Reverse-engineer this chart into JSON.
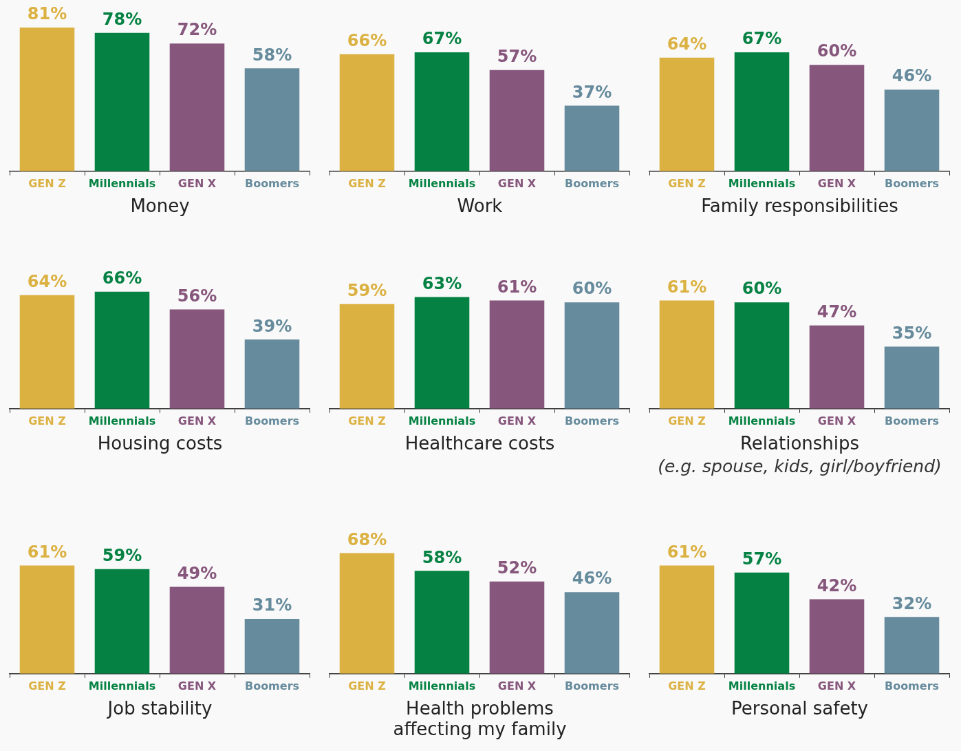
{
  "chart_data": [
    {
      "type": "bar",
      "title": "Money",
      "categories": [
        "GEN Z",
        "Millennials",
        "GEN X",
        "Boomers"
      ],
      "values": [
        81,
        78,
        72,
        58
      ],
      "value_labels": [
        "81%",
        "78%",
        "72%",
        "58%"
      ],
      "colors": [
        "#dbb142",
        "#058243",
        "#86567c",
        "#668b9c"
      ],
      "grid": false,
      "legend": false
    },
    {
      "type": "bar",
      "title": "Work",
      "categories": [
        "GEN Z",
        "Millennials",
        "GEN X",
        "Boomers"
      ],
      "values": [
        66,
        67,
        57,
        37
      ],
      "value_labels": [
        "66%",
        "67%",
        "57%",
        "37%"
      ],
      "colors": [
        "#dbb142",
        "#058243",
        "#86567c",
        "#668b9c"
      ],
      "grid": false,
      "legend": false
    },
    {
      "type": "bar",
      "title": "Family responsibilities",
      "categories": [
        "GEN Z",
        "Millennials",
        "GEN X",
        "Boomers"
      ],
      "values": [
        64,
        67,
        60,
        46
      ],
      "value_labels": [
        "64%",
        "67%",
        "60%",
        "46%"
      ],
      "colors": [
        "#dbb142",
        "#058243",
        "#86567c",
        "#668b9c"
      ],
      "grid": false,
      "legend": false
    },
    {
      "type": "bar",
      "title": "Housing costs",
      "categories": [
        "GEN Z",
        "Millennials",
        "GEN X",
        "Boomers"
      ],
      "values": [
        64,
        66,
        56,
        39
      ],
      "value_labels": [
        "64%",
        "66%",
        "56%",
        "39%"
      ],
      "colors": [
        "#dbb142",
        "#058243",
        "#86567c",
        "#668b9c"
      ],
      "grid": false,
      "legend": false
    },
    {
      "type": "bar",
      "title": "Healthcare costs",
      "categories": [
        "GEN Z",
        "Millennials",
        "GEN X",
        "Boomers"
      ],
      "values": [
        59,
        63,
        61,
        60
      ],
      "value_labels": [
        "59%",
        "63%",
        "61%",
        "60%"
      ],
      "colors": [
        "#dbb142",
        "#058243",
        "#86567c",
        "#668b9c"
      ],
      "grid": false,
      "legend": false
    },
    {
      "type": "bar",
      "title": "Relationships",
      "subtitle": "(e.g. spouse, kids, girl/boyfriend)",
      "categories": [
        "GEN Z",
        "Millennials",
        "GEN X",
        "Boomers"
      ],
      "values": [
        61,
        60,
        47,
        35
      ],
      "value_labels": [
        "61%",
        "60%",
        "47%",
        "35%"
      ],
      "colors": [
        "#dbb142",
        "#058243",
        "#86567c",
        "#668b9c"
      ],
      "grid": false,
      "legend": false
    },
    {
      "type": "bar",
      "title": "Job stability",
      "categories": [
        "GEN Z",
        "Millennials",
        "GEN X",
        "Boomers"
      ],
      "values": [
        61,
        59,
        49,
        31
      ],
      "value_labels": [
        "61%",
        "59%",
        "49%",
        "31%"
      ],
      "colors": [
        "#dbb142",
        "#058243",
        "#86567c",
        "#668b9c"
      ],
      "grid": false,
      "legend": false
    },
    {
      "type": "bar",
      "title": "Health problems affecting my family",
      "categories": [
        "GEN Z",
        "Millennials",
        "GEN X",
        "Boomers"
      ],
      "values": [
        68,
        58,
        52,
        46
      ],
      "value_labels": [
        "68%",
        "58%",
        "52%",
        "46%"
      ],
      "colors": [
        "#dbb142",
        "#058243",
        "#86567c",
        "#668b9c"
      ],
      "grid": false,
      "legend": false
    },
    {
      "type": "bar",
      "title": "Personal safety",
      "categories": [
        "GEN Z",
        "Millennials",
        "GEN X",
        "Boomers"
      ],
      "values": [
        61,
        57,
        42,
        32
      ],
      "value_labels": [
        "61%",
        "57%",
        "42%",
        "32%"
      ],
      "colors": [
        "#dbb142",
        "#058243",
        "#86567c",
        "#668b9c"
      ],
      "grid": false,
      "legend": false
    }
  ]
}
